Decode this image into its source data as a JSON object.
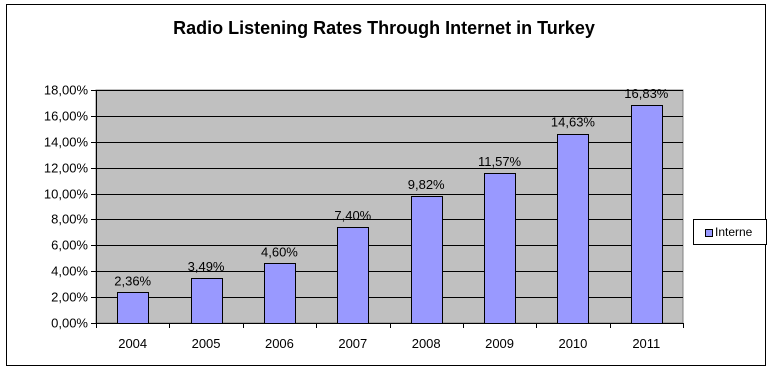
{
  "chart_data": {
    "type": "bar",
    "title": "Radio Listening Rates Through Internet in Turkey",
    "categories": [
      "2004",
      "2005",
      "2006",
      "2007",
      "2008",
      "2009",
      "2010",
      "2011"
    ],
    "series": [
      {
        "name": "Interne",
        "values": [
          2.36,
          3.49,
          4.6,
          7.4,
          9.82,
          11.57,
          14.63,
          16.83
        ],
        "data_labels": [
          "2,36%",
          "3,49%",
          "4,60%",
          "7,40%",
          "9,82%",
          "11,57%",
          "14,63%",
          "16,83%"
        ]
      }
    ],
    "ylim": [
      0,
      18
    ],
    "y_ticks": [
      0,
      2,
      4,
      6,
      8,
      10,
      12,
      14,
      16,
      18
    ],
    "y_tick_labels": [
      "0,00%",
      "2,00%",
      "4,00%",
      "6,00%",
      "8,00%",
      "10,00%",
      "12,00%",
      "14,00%",
      "16,00%",
      "18,00%"
    ],
    "xlabel": "",
    "ylabel": "",
    "grid": true,
    "legend_position": "right",
    "colors": {
      "bar_fill": "#9999ff",
      "bar_stroke": "#000000",
      "plot_background": "#c0c0c0",
      "gridline": "#000000"
    }
  }
}
